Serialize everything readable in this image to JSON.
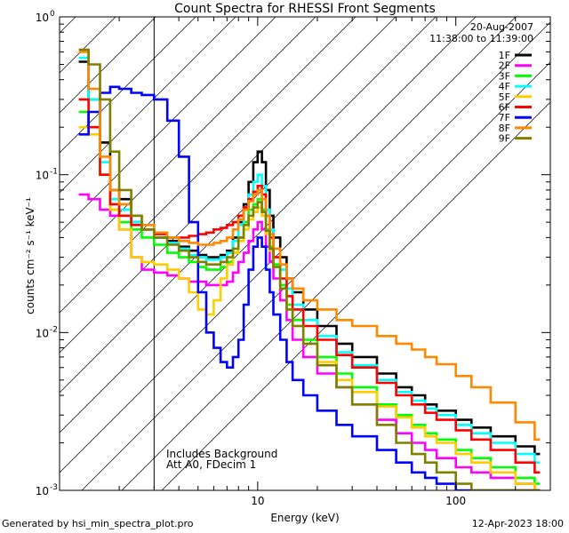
{
  "chart_data": {
    "type": "line",
    "title": "Count Spectra for RHESSI Front Segments",
    "xlabel": "Energy (keV)",
    "ylabel": "counts cm⁻² s⁻¹ keV⁻¹",
    "xscale": "log",
    "yscale": "log",
    "xlim": [
      1.0,
      300
    ],
    "ylim": [
      0.001,
      1.0
    ],
    "x_ticks": [
      {
        "value": 10,
        "label": "10"
      },
      {
        "value": 100,
        "label": "100"
      }
    ],
    "y_ticks": [
      {
        "value": 1,
        "label": "10",
        "exp": "0"
      },
      {
        "value": 0.1,
        "label": "10",
        "exp": "-1"
      },
      {
        "value": 0.01,
        "label": "10",
        "exp": "-2"
      },
      {
        "value": 0.001,
        "label": "10",
        "exp": "-3"
      }
    ],
    "shaded_region_max_kev": 3.0,
    "legend": {
      "date": "20-Aug-2007",
      "time_range": "11:38:00 to 11:39:00",
      "placement": "top-right"
    },
    "annotation_lines": [
      "Includes Background",
      "Att A0, FDecim 1"
    ],
    "footer_left": "Generated by hsi_min_spectra_plot.pro",
    "footer_right": "12-Apr-2023 18:00",
    "series": [
      {
        "name": "1F",
        "color": "#000000",
        "x": [
          1.25,
          1.4,
          1.6,
          1.8,
          2.0,
          2.3,
          2.6,
          3.0,
          3.5,
          4,
          4.5,
          5,
          5.5,
          6,
          6.5,
          7,
          7.5,
          8,
          8.5,
          9,
          9.5,
          10,
          10.5,
          11,
          11.5,
          12,
          13,
          14,
          15,
          17,
          20,
          25,
          30,
          40,
          50,
          60,
          70,
          80,
          100,
          120,
          150,
          200,
          250
        ],
        "values": [
          0.52,
          0.3,
          0.16,
          0.08,
          0.07,
          0.05,
          0.045,
          0.04,
          0.038,
          0.035,
          0.033,
          0.031,
          0.03,
          0.03,
          0.031,
          0.033,
          0.04,
          0.05,
          0.065,
          0.09,
          0.12,
          0.14,
          0.12,
          0.08,
          0.055,
          0.04,
          0.03,
          0.022,
          0.018,
          0.014,
          0.011,
          0.0085,
          0.007,
          0.0055,
          0.0045,
          0.004,
          0.0035,
          0.0032,
          0.0028,
          0.0025,
          0.0022,
          0.0019,
          0.0017
        ]
      },
      {
        "name": "2F",
        "color": "#ff00ff",
        "x": [
          1.25,
          1.4,
          1.6,
          1.8,
          2.0,
          2.3,
          2.6,
          3.0,
          3.5,
          4,
          4.5,
          5,
          5.5,
          6,
          6.5,
          7,
          7.5,
          8,
          8.5,
          9,
          9.5,
          10,
          10.5,
          11,
          11.5,
          12,
          13,
          14,
          15,
          17,
          20,
          25,
          30,
          40,
          50,
          60,
          70,
          80,
          100,
          120,
          150,
          200,
          250
        ],
        "values": [
          0.075,
          0.07,
          0.06,
          0.055,
          0.045,
          0.03,
          0.025,
          0.024,
          0.023,
          0.022,
          0.021,
          0.021,
          0.02,
          0.02,
          0.02,
          0.021,
          0.024,
          0.028,
          0.032,
          0.038,
          0.045,
          0.05,
          0.045,
          0.035,
          0.028,
          0.022,
          0.016,
          0.012,
          0.009,
          0.007,
          0.0055,
          0.0045,
          0.0035,
          0.0028,
          0.0023,
          0.002,
          0.0018,
          0.0016,
          0.0014,
          0.0013,
          0.0012,
          0.0011,
          0.001
        ]
      },
      {
        "name": "3F",
        "color": "#00ff00",
        "x": [
          1.25,
          1.4,
          1.6,
          1.8,
          2.0,
          2.3,
          2.6,
          3.0,
          3.5,
          4,
          4.5,
          5,
          5.5,
          6,
          6.5,
          7,
          7.5,
          8,
          8.5,
          9,
          9.5,
          10,
          10.5,
          11,
          11.5,
          12,
          13,
          14,
          15,
          17,
          20,
          25,
          30,
          40,
          50,
          60,
          70,
          80,
          100,
          120,
          150,
          200,
          250
        ],
        "values": [
          0.25,
          0.2,
          0.1,
          0.06,
          0.05,
          0.045,
          0.04,
          0.036,
          0.032,
          0.03,
          0.028,
          0.026,
          0.025,
          0.025,
          0.026,
          0.028,
          0.032,
          0.04,
          0.05,
          0.06,
          0.065,
          0.07,
          0.06,
          0.045,
          0.035,
          0.027,
          0.02,
          0.015,
          0.012,
          0.009,
          0.007,
          0.0055,
          0.0045,
          0.0035,
          0.003,
          0.0026,
          0.0023,
          0.0021,
          0.0018,
          0.0016,
          0.0014,
          0.0012,
          0.0011
        ]
      },
      {
        "name": "4F",
        "color": "#00ffff",
        "x": [
          1.25,
          1.4,
          1.6,
          1.8,
          2.0,
          2.3,
          2.6,
          3.0,
          3.5,
          4,
          4.5,
          5,
          5.5,
          6,
          6.5,
          7,
          7.5,
          8,
          8.5,
          9,
          9.5,
          10,
          10.5,
          11,
          11.5,
          12,
          13,
          14,
          15,
          17,
          20,
          25,
          30,
          40,
          50,
          60,
          70,
          80,
          100,
          120,
          150,
          200,
          250
        ],
        "values": [
          0.55,
          0.3,
          0.12,
          0.07,
          0.06,
          0.05,
          0.045,
          0.04,
          0.037,
          0.034,
          0.031,
          0.03,
          0.029,
          0.029,
          0.03,
          0.032,
          0.038,
          0.048,
          0.06,
          0.075,
          0.09,
          0.1,
          0.085,
          0.06,
          0.045,
          0.034,
          0.025,
          0.019,
          0.015,
          0.012,
          0.0095,
          0.0075,
          0.0062,
          0.005,
          0.0042,
          0.0037,
          0.0033,
          0.003,
          0.0026,
          0.0023,
          0.002,
          0.0017,
          0.0015
        ]
      },
      {
        "name": "5F",
        "color": "#ffcc00",
        "x": [
          1.25,
          1.4,
          1.6,
          1.8,
          2.0,
          2.3,
          2.6,
          3.0,
          3.5,
          4,
          4.5,
          5,
          5.5,
          6,
          6.5,
          7,
          7.5,
          8,
          8.5,
          9,
          9.5,
          10,
          10.5,
          11,
          11.5,
          12,
          13,
          14,
          15,
          17,
          20,
          25,
          30,
          40,
          50,
          60,
          70,
          80,
          100,
          120,
          150,
          200,
          250
        ],
        "values": [
          0.2,
          0.18,
          0.1,
          0.06,
          0.045,
          0.03,
          0.028,
          0.027,
          0.025,
          0.022,
          0.018,
          0.014,
          0.013,
          0.016,
          0.022,
          0.027,
          0.032,
          0.038,
          0.045,
          0.052,
          0.058,
          0.062,
          0.055,
          0.042,
          0.033,
          0.026,
          0.019,
          0.014,
          0.011,
          0.0085,
          0.0065,
          0.005,
          0.0042,
          0.0034,
          0.0029,
          0.0025,
          0.0022,
          0.002,
          0.0017,
          0.0015,
          0.0013,
          0.0011,
          0.001
        ]
      },
      {
        "name": "6F",
        "color": "#ff0000",
        "x": [
          1.25,
          1.4,
          1.6,
          1.8,
          2.0,
          2.3,
          2.6,
          3.0,
          3.5,
          4,
          4.5,
          5,
          5.5,
          6,
          6.5,
          7,
          7.5,
          8,
          8.5,
          9,
          9.5,
          10,
          10.5,
          11,
          11.5,
          12,
          13,
          14,
          15,
          17,
          20,
          25,
          30,
          40,
          50,
          60,
          70,
          80,
          100,
          120,
          150,
          200,
          250
        ],
        "values": [
          0.3,
          0.2,
          0.1,
          0.065,
          0.055,
          0.048,
          0.045,
          0.042,
          0.04,
          0.04,
          0.041,
          0.042,
          0.043,
          0.045,
          0.046,
          0.048,
          0.05,
          0.055,
          0.062,
          0.07,
          0.078,
          0.085,
          0.075,
          0.055,
          0.04,
          0.03,
          0.022,
          0.017,
          0.014,
          0.011,
          0.009,
          0.0072,
          0.006,
          0.0048,
          0.004,
          0.0035,
          0.0031,
          0.0028,
          0.0024,
          0.0021,
          0.0018,
          0.0015,
          0.0013
        ]
      },
      {
        "name": "7F",
        "color": "#0000ff",
        "x": [
          1.25,
          1.4,
          1.6,
          1.8,
          2.0,
          2.3,
          2.6,
          3.0,
          3.5,
          4,
          4.5,
          5,
          5.5,
          6,
          6.5,
          7,
          7.5,
          8,
          8.5,
          9,
          9.5,
          10,
          10.5,
          11,
          11.5,
          12,
          13,
          14,
          15,
          17,
          20,
          25,
          30,
          40,
          50,
          60,
          70,
          80,
          100,
          120,
          150,
          200,
          250
        ],
        "values": [
          0.18,
          0.25,
          0.33,
          0.36,
          0.35,
          0.33,
          0.32,
          0.3,
          0.22,
          0.13,
          0.05,
          0.018,
          0.01,
          0.008,
          0.0065,
          0.006,
          0.007,
          0.009,
          0.015,
          0.025,
          0.035,
          0.04,
          0.035,
          0.025,
          0.018,
          0.013,
          0.009,
          0.0065,
          0.005,
          0.004,
          0.0032,
          0.0026,
          0.0022,
          0.0018,
          0.0015,
          0.0013,
          0.0012,
          0.0011,
          0.001,
          0.001,
          0.001,
          0.001,
          0.001
        ]
      },
      {
        "name": "8F",
        "color": "#ff8800",
        "x": [
          1.25,
          1.4,
          1.6,
          1.8,
          2.0,
          2.3,
          2.6,
          3.0,
          3.5,
          4,
          4.5,
          5,
          5.5,
          6,
          6.5,
          7,
          7.5,
          8,
          8.5,
          9,
          9.5,
          10,
          10.5,
          11,
          11.5,
          12,
          13,
          14,
          15,
          17,
          20,
          25,
          30,
          40,
          50,
          60,
          70,
          80,
          100,
          120,
          150,
          200,
          250
        ],
        "values": [
          0.6,
          0.35,
          0.13,
          0.08,
          0.065,
          0.055,
          0.048,
          0.043,
          0.04,
          0.038,
          0.037,
          0.036,
          0.036,
          0.037,
          0.038,
          0.04,
          0.045,
          0.052,
          0.06,
          0.068,
          0.075,
          0.08,
          0.07,
          0.055,
          0.042,
          0.034,
          0.027,
          0.022,
          0.019,
          0.016,
          0.014,
          0.012,
          0.011,
          0.0095,
          0.0085,
          0.0078,
          0.007,
          0.0063,
          0.0053,
          0.0045,
          0.0036,
          0.0027,
          0.0021
        ]
      },
      {
        "name": "9F",
        "color": "#808000",
        "x": [
          1.25,
          1.4,
          1.6,
          1.8,
          2.0,
          2.3,
          2.6,
          3.0,
          3.5,
          4,
          4.5,
          5,
          5.5,
          6,
          6.5,
          7,
          7.5,
          8,
          8.5,
          9,
          9.5,
          10,
          10.5,
          11,
          11.5,
          12,
          13,
          14,
          15,
          17,
          20,
          25,
          30,
          40,
          50,
          60,
          70,
          80,
          100,
          120,
          150,
          200,
          250
        ],
        "values": [
          0.62,
          0.5,
          0.3,
          0.14,
          0.08,
          0.055,
          0.045,
          0.04,
          0.036,
          0.033,
          0.03,
          0.028,
          0.027,
          0.027,
          0.028,
          0.03,
          0.034,
          0.04,
          0.048,
          0.055,
          0.062,
          0.067,
          0.058,
          0.044,
          0.034,
          0.026,
          0.019,
          0.014,
          0.011,
          0.0085,
          0.0062,
          0.0045,
          0.0035,
          0.0026,
          0.002,
          0.0017,
          0.0015,
          0.0013,
          0.0011,
          0.001,
          0.001,
          0.001,
          0.001
        ]
      }
    ]
  }
}
